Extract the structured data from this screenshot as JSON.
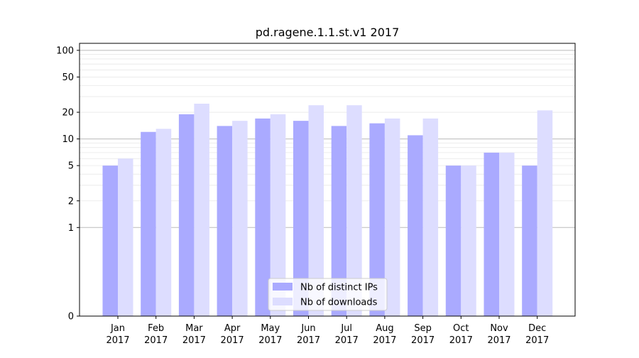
{
  "chart_data": {
    "type": "bar",
    "title": "pd.ragene.1.1.st.v1 2017",
    "xlabel": "",
    "ylabel": "",
    "yscale": "symlog",
    "ylim": [
      0,
      120
    ],
    "grid": true,
    "legend_position": "bottom-center",
    "categories": [
      [
        "Jan",
        "2017"
      ],
      [
        "Feb",
        "2017"
      ],
      [
        "Mar",
        "2017"
      ],
      [
        "Apr",
        "2017"
      ],
      [
        "May",
        "2017"
      ],
      [
        "Jun",
        "2017"
      ],
      [
        "Jul",
        "2017"
      ],
      [
        "Aug",
        "2017"
      ],
      [
        "Sep",
        "2017"
      ],
      [
        "Oct",
        "2017"
      ],
      [
        "Nov",
        "2017"
      ],
      [
        "Dec",
        "2017"
      ]
    ],
    "yticks": [
      0,
      1,
      2,
      5,
      10,
      20,
      50,
      100
    ],
    "series": [
      {
        "name": "Nb of distinct IPs",
        "color": "#aaaaff",
        "values": [
          5,
          12,
          19,
          14,
          17,
          16,
          14,
          15,
          11,
          5,
          7,
          5
        ]
      },
      {
        "name": "Nb of downloads",
        "color": "#ddddff",
        "values": [
          6,
          13,
          25,
          16,
          19,
          24,
          24,
          17,
          17,
          5,
          7,
          21
        ]
      }
    ]
  }
}
